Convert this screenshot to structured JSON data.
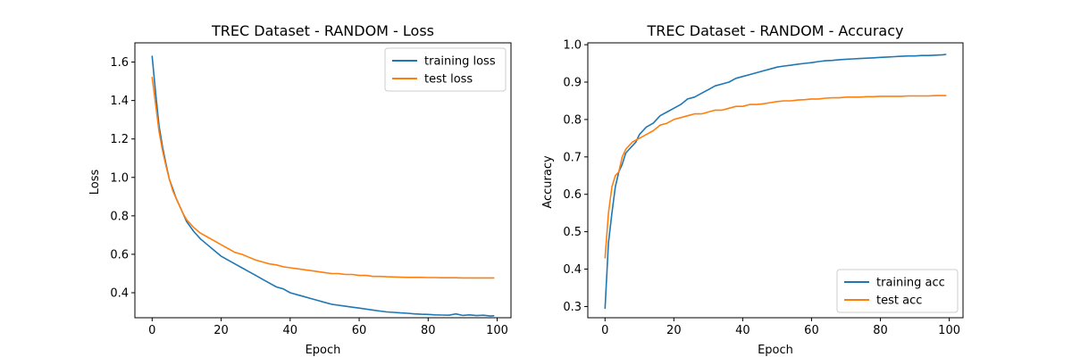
{
  "chart_data": [
    {
      "type": "line",
      "title": "TREC Dataset - RANDOM - Loss",
      "xlabel": "Epoch",
      "ylabel": "Loss",
      "xlim": [
        -5,
        104
      ],
      "ylim": [
        0.27,
        1.7
      ],
      "xticks": [
        0,
        20,
        40,
        60,
        80,
        100
      ],
      "yticks": [
        0.4,
        0.6,
        0.8,
        1.0,
        1.2,
        1.4,
        1.6
      ],
      "ytick_decimals": 1,
      "legend_position": "top-right",
      "series": [
        {
          "name": "training loss",
          "color": "#1f77b4",
          "x": [
            0,
            1,
            2,
            3,
            4,
            5,
            6,
            7,
            8,
            9,
            10,
            12,
            14,
            16,
            18,
            20,
            22,
            24,
            26,
            28,
            30,
            32,
            34,
            36,
            38,
            40,
            42,
            44,
            46,
            48,
            50,
            52,
            54,
            56,
            58,
            60,
            62,
            64,
            66,
            68,
            70,
            72,
            74,
            76,
            78,
            80,
            82,
            84,
            86,
            88,
            90,
            92,
            94,
            96,
            98,
            99
          ],
          "y": [
            1.63,
            1.44,
            1.27,
            1.16,
            1.07,
            0.99,
            0.94,
            0.89,
            0.85,
            0.81,
            0.77,
            0.72,
            0.68,
            0.65,
            0.62,
            0.59,
            0.57,
            0.55,
            0.53,
            0.51,
            0.49,
            0.47,
            0.45,
            0.43,
            0.42,
            0.4,
            0.39,
            0.38,
            0.37,
            0.36,
            0.35,
            0.34,
            0.335,
            0.33,
            0.325,
            0.32,
            0.315,
            0.31,
            0.305,
            0.3,
            0.298,
            0.295,
            0.293,
            0.29,
            0.288,
            0.287,
            0.285,
            0.284,
            0.283,
            0.29,
            0.282,
            0.285,
            0.281,
            0.283,
            0.279,
            0.28
          ]
        },
        {
          "name": "test loss",
          "color": "#ff7f0e",
          "x": [
            0,
            1,
            2,
            3,
            4,
            5,
            6,
            7,
            8,
            9,
            10,
            12,
            14,
            16,
            18,
            20,
            22,
            24,
            26,
            28,
            30,
            32,
            34,
            36,
            38,
            40,
            42,
            44,
            46,
            48,
            50,
            52,
            54,
            56,
            58,
            60,
            62,
            64,
            66,
            68,
            70,
            72,
            74,
            76,
            78,
            80,
            82,
            84,
            86,
            88,
            90,
            92,
            94,
            96,
            98,
            99
          ],
          "y": [
            1.52,
            1.38,
            1.24,
            1.14,
            1.06,
            0.99,
            0.93,
            0.89,
            0.85,
            0.81,
            0.78,
            0.74,
            0.71,
            0.69,
            0.67,
            0.65,
            0.63,
            0.61,
            0.6,
            0.585,
            0.57,
            0.56,
            0.55,
            0.545,
            0.535,
            0.53,
            0.525,
            0.52,
            0.515,
            0.51,
            0.505,
            0.5,
            0.5,
            0.495,
            0.495,
            0.49,
            0.49,
            0.485,
            0.485,
            0.483,
            0.482,
            0.481,
            0.48,
            0.48,
            0.48,
            0.479,
            0.479,
            0.478,
            0.478,
            0.478,
            0.477,
            0.477,
            0.477,
            0.477,
            0.477,
            0.477
          ]
        }
      ]
    },
    {
      "type": "line",
      "title": "TREC Dataset - RANDOM - Accuracy",
      "xlabel": "Epoch",
      "ylabel": "Accuracy",
      "xlim": [
        -5,
        104
      ],
      "ylim": [
        0.27,
        1.005
      ],
      "xticks": [
        0,
        20,
        40,
        60,
        80,
        100
      ],
      "yticks": [
        0.3,
        0.4,
        0.5,
        0.6,
        0.7,
        0.8,
        0.9,
        1.0
      ],
      "ytick_decimals": 1,
      "legend_position": "bottom-right",
      "series": [
        {
          "name": "training acc",
          "color": "#1f77b4",
          "x": [
            0,
            1,
            2,
            3,
            4,
            5,
            6,
            7,
            8,
            9,
            10,
            12,
            14,
            16,
            18,
            20,
            22,
            24,
            26,
            28,
            30,
            32,
            34,
            36,
            38,
            40,
            42,
            44,
            46,
            48,
            50,
            52,
            54,
            56,
            58,
            60,
            62,
            64,
            66,
            68,
            70,
            72,
            74,
            76,
            78,
            80,
            82,
            84,
            86,
            88,
            90,
            92,
            94,
            96,
            98,
            99
          ],
          "y": [
            0.295,
            0.47,
            0.55,
            0.62,
            0.66,
            0.68,
            0.71,
            0.72,
            0.73,
            0.74,
            0.76,
            0.78,
            0.79,
            0.81,
            0.82,
            0.83,
            0.84,
            0.855,
            0.86,
            0.87,
            0.88,
            0.89,
            0.895,
            0.9,
            0.91,
            0.915,
            0.92,
            0.925,
            0.93,
            0.935,
            0.94,
            0.943,
            0.945,
            0.948,
            0.95,
            0.952,
            0.955,
            0.957,
            0.958,
            0.96,
            0.961,
            0.962,
            0.963,
            0.964,
            0.965,
            0.966,
            0.967,
            0.968,
            0.969,
            0.97,
            0.97,
            0.971,
            0.971,
            0.972,
            0.973,
            0.974
          ]
        },
        {
          "name": "test acc",
          "color": "#ff7f0e",
          "x": [
            0,
            1,
            2,
            3,
            4,
            5,
            6,
            7,
            8,
            9,
            10,
            12,
            14,
            16,
            18,
            20,
            22,
            24,
            26,
            28,
            30,
            32,
            34,
            36,
            38,
            40,
            42,
            44,
            46,
            48,
            50,
            52,
            54,
            56,
            58,
            60,
            62,
            64,
            66,
            68,
            70,
            72,
            74,
            76,
            78,
            80,
            82,
            84,
            86,
            88,
            90,
            92,
            94,
            96,
            98,
            99
          ],
          "y": [
            0.43,
            0.55,
            0.62,
            0.65,
            0.66,
            0.7,
            0.72,
            0.73,
            0.74,
            0.745,
            0.75,
            0.76,
            0.77,
            0.785,
            0.79,
            0.8,
            0.805,
            0.81,
            0.815,
            0.815,
            0.82,
            0.825,
            0.825,
            0.83,
            0.835,
            0.835,
            0.84,
            0.84,
            0.842,
            0.845,
            0.848,
            0.85,
            0.85,
            0.852,
            0.853,
            0.855,
            0.855,
            0.857,
            0.858,
            0.858,
            0.86,
            0.86,
            0.86,
            0.861,
            0.861,
            0.862,
            0.862,
            0.862,
            0.862,
            0.863,
            0.863,
            0.863,
            0.863,
            0.864,
            0.864,
            0.864
          ]
        }
      ]
    }
  ]
}
